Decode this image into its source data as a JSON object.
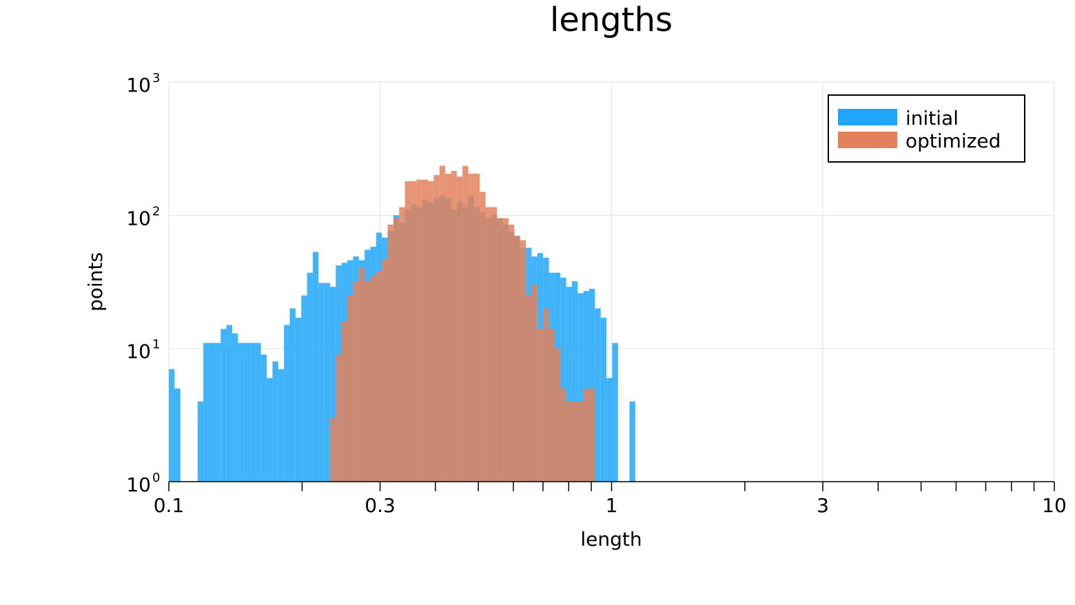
{
  "chart_data": {
    "type": "bar",
    "title": "lengths",
    "xlabel": "length",
    "ylabel": "points",
    "x_scale": "log10",
    "y_scale": "log10",
    "xlim": [
      0.1,
      10
    ],
    "ylim": [
      1,
      1000
    ],
    "grid": true,
    "legend_position": "top-right",
    "x_ticks": [
      {
        "value": 0.1,
        "label": "0.1"
      },
      {
        "value": 0.3,
        "label": "0.3"
      },
      {
        "value": 1,
        "label": "1"
      },
      {
        "value": 3,
        "label": "3"
      },
      {
        "value": 10,
        "label": "10"
      }
    ],
    "x_minor_ticks": [
      0.2,
      0.4,
      0.5,
      0.6,
      0.7,
      0.8,
      0.9,
      2,
      4,
      5,
      6,
      7,
      8,
      9
    ],
    "y_ticks": [
      {
        "value": 1,
        "base": "10",
        "exp": "0"
      },
      {
        "value": 10,
        "base": "10",
        "exp": "1"
      },
      {
        "value": 100,
        "base": "10",
        "exp": "2"
      },
      {
        "value": 1000,
        "base": "10",
        "exp": "3"
      }
    ],
    "bin_start": 0.1,
    "bin_ratio": 1.0304,
    "series": [
      {
        "name": "initial",
        "color": "#1fa6f8",
        "values": [
          7,
          5,
          0,
          0,
          0,
          4,
          11,
          11,
          11,
          14,
          15,
          13,
          11,
          11,
          11,
          11,
          9,
          6,
          8,
          7,
          15,
          20,
          17,
          25,
          37,
          53,
          31,
          31,
          29,
          42,
          44,
          46,
          49,
          46,
          55,
          58,
          74,
          68,
          76,
          100,
          88,
          110,
          120,
          115,
          130,
          125,
          135,
          140,
          135,
          110,
          125,
          115,
          140,
          115,
          105,
          95,
          100,
          95,
          85,
          75,
          70,
          57,
          57,
          49,
          52,
          48,
          37,
          37,
          34,
          29,
          32,
          26,
          27,
          28,
          20,
          17,
          6,
          11,
          0,
          0,
          4
        ]
      },
      {
        "name": "optimized",
        "color": "#e2815a",
        "values": [
          0,
          0,
          0,
          0,
          0,
          0,
          0,
          0,
          0,
          0,
          0,
          0,
          0,
          0,
          0,
          0,
          0,
          0,
          0,
          0,
          0,
          0,
          0,
          0,
          1,
          0,
          0,
          1,
          3,
          9,
          16,
          25,
          32,
          40,
          32,
          35,
          38,
          47,
          85,
          95,
          115,
          180,
          180,
          185,
          185,
          180,
          200,
          235,
          205,
          215,
          195,
          235,
          205,
          205,
          150,
          115,
          115,
          95,
          95,
          85,
          70,
          65,
          25,
          30,
          14,
          20,
          14,
          10,
          5,
          4,
          4,
          4,
          5,
          5,
          0,
          1,
          0,
          1
        ]
      }
    ]
  }
}
